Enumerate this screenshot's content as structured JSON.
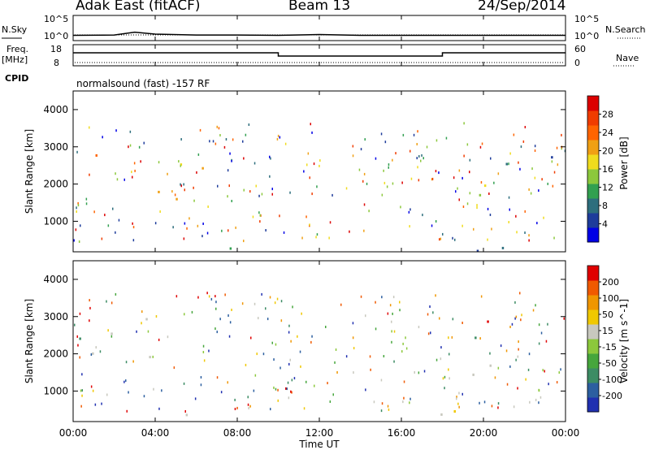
{
  "header": {
    "station": "Adak East (fitACF)",
    "beam": "Beam 13",
    "date": "24/Sep/2014"
  },
  "top_panels": {
    "nsky_label": "N.Sky",
    "nsky_ticks": [
      "10^5",
      "10^0"
    ],
    "nsearch_label": "N.Search",
    "freq_label": "Freq.",
    "freq_unit": "[MHz]",
    "freq_ticks": [
      "18",
      "8"
    ],
    "nave_label": "Nave",
    "nave_ticks": [
      "60",
      "0"
    ],
    "cpid_label": "CPID",
    "cpid_text": "normalsound (fast) -157 RF"
  },
  "x_axis": {
    "label": "Time UT",
    "ticks": [
      "00:00",
      "04:00",
      "08:00",
      "12:00",
      "16:00",
      "20:00",
      "00:00"
    ]
  },
  "chart_data": [
    {
      "type": "line",
      "title": "N.Sky / N.Search",
      "yscale": "log",
      "ylim_label": [
        "10^0",
        "10^5"
      ],
      "x": [
        "00:00",
        "02:00",
        "03:00",
        "04:00",
        "06:00",
        "08:00",
        "10:00",
        "12:00",
        "14:00",
        "16:00",
        "18:00",
        "20:00",
        "22:00",
        "24:00"
      ],
      "series": [
        {
          "name": "N.Sky",
          "values": [
            5,
            6,
            30,
            10,
            6,
            6,
            5,
            8,
            5,
            5,
            5,
            5,
            5,
            5
          ]
        }
      ]
    },
    {
      "type": "line",
      "title": "Freq. / Nave",
      "ylim": [
        8,
        18
      ],
      "x": [
        "00:00",
        "10:00",
        "10:00",
        "18:00",
        "18:00",
        "24:00"
      ],
      "series": [
        {
          "name": "Freq.",
          "values": [
            14.5,
            14.5,
            12.5,
            12.5,
            14.5,
            14.5
          ]
        }
      ]
    },
    {
      "type": "heatmap",
      "title": "Power",
      "ylabel": "Slant Range [km]",
      "ylim": [
        180,
        4500
      ],
      "y_ticks": [
        1000,
        2000,
        3000,
        4000
      ],
      "xlim_hours": [
        0,
        24
      ],
      "colorbar": {
        "label": "Power [dB]",
        "ticks": [
          "28",
          "24",
          "20",
          "16",
          "12",
          "8",
          "4"
        ],
        "colors": [
          "#0000e6",
          "#1e3c9b",
          "#2d6e7d",
          "#32a050",
          "#8cc83c",
          "#f0dc1e",
          "#f0a014",
          "#ff6400",
          "#f03c00",
          "#dc0000"
        ]
      },
      "regions": [
        {
          "t_start": 0.0,
          "t_end": 6.3,
          "r_low": 1300,
          "r_high": 3000,
          "level_db": 18
        },
        {
          "t_start": 17.3,
          "t_end": 18.0,
          "r_low": 2100,
          "r_high": 2900,
          "level_db": 10
        },
        {
          "t_start": 18.5,
          "t_end": 24.0,
          "r_low": 1400,
          "r_high": 3000,
          "level_db": 10
        },
        {
          "t_start": 0.0,
          "t_end": 24.0,
          "r_low": 180,
          "r_high": 500,
          "level_db": 8
        },
        {
          "t_start": 11.0,
          "t_end": 13.0,
          "r_low": 250,
          "r_high": 450,
          "level_db": 28
        }
      ]
    },
    {
      "type": "heatmap",
      "title": "Velocity",
      "ylabel": "Slant Range [km]",
      "ylim": [
        180,
        4500
      ],
      "y_ticks": [
        1000,
        2000,
        3000,
        4000
      ],
      "xlim_hours": [
        0,
        24
      ],
      "colorbar": {
        "label": "Velocity [m s^-1]",
        "ticks": [
          "200",
          "100",
          "50",
          "15",
          "-15",
          "-50",
          "-100",
          "-200"
        ],
        "colors": [
          "#2030b0",
          "#2c5fa0",
          "#3c8c64",
          "#46a63c",
          "#8cc83c",
          "#c8c8be",
          "#f0c800",
          "#f09600",
          "#f05a00",
          "#e00000"
        ]
      },
      "regions": [
        {
          "t_start": 0.0,
          "t_end": 6.3,
          "r_low": 1300,
          "r_high": 3000,
          "velocity": 0
        },
        {
          "t_start": 17.3,
          "t_end": 18.0,
          "r_low": 2100,
          "r_high": 2900,
          "velocity": 0
        },
        {
          "t_start": 18.5,
          "t_end": 24.0,
          "r_low": 1400,
          "r_high": 3000,
          "velocity": 0
        },
        {
          "t_start": 0.0,
          "t_end": 24.0,
          "r_low": 180,
          "r_high": 500,
          "velocity": -30
        }
      ]
    }
  ]
}
